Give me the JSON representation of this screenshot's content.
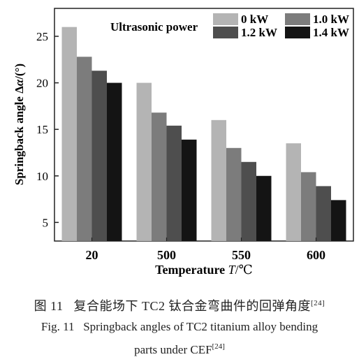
{
  "chart_data": {
    "type": "bar",
    "categories": [
      "20",
      "500",
      "550",
      "600"
    ],
    "series": [
      {
        "name": "0 kW",
        "color": "#b4b4b4",
        "values": [
          26.0,
          20.0,
          16.0,
          13.5
        ]
      },
      {
        "name": "1.0 kW",
        "color": "#7c7c7c",
        "values": [
          22.8,
          16.8,
          13.0,
          10.4
        ]
      },
      {
        "name": "1.2 kW",
        "color": "#4e4e4e",
        "values": [
          21.3,
          15.4,
          11.5,
          8.9
        ]
      },
      {
        "name": "1.4 kW",
        "color": "#141414",
        "values": [
          20.0,
          13.9,
          10.0,
          7.4
        ]
      }
    ],
    "legend_title": "Ultrasonic power",
    "legend_position": "top-right",
    "xlabel_main": "Temperature ",
    "xlabel_symbol": "T",
    "xlabel_unit": "/℃",
    "ylabel_main": "Springback angle Δ",
    "ylabel_symbol": "α",
    "ylabel_unit": "/(°)",
    "yticks": [
      5,
      10,
      15,
      20,
      25
    ],
    "ylim": [
      3,
      28
    ],
    "grid": false
  },
  "caption": {
    "cn_label": "图 11",
    "cn_text": "复合能场下 TC2 钛合金弯曲件的回弹角度",
    "cn_ref": "[24]",
    "en_label": "Fig. 11",
    "en_line1": "Springback angles of TC2 titanium alloy bending",
    "en_line2": "parts under CEF",
    "en_ref": "[24]"
  }
}
